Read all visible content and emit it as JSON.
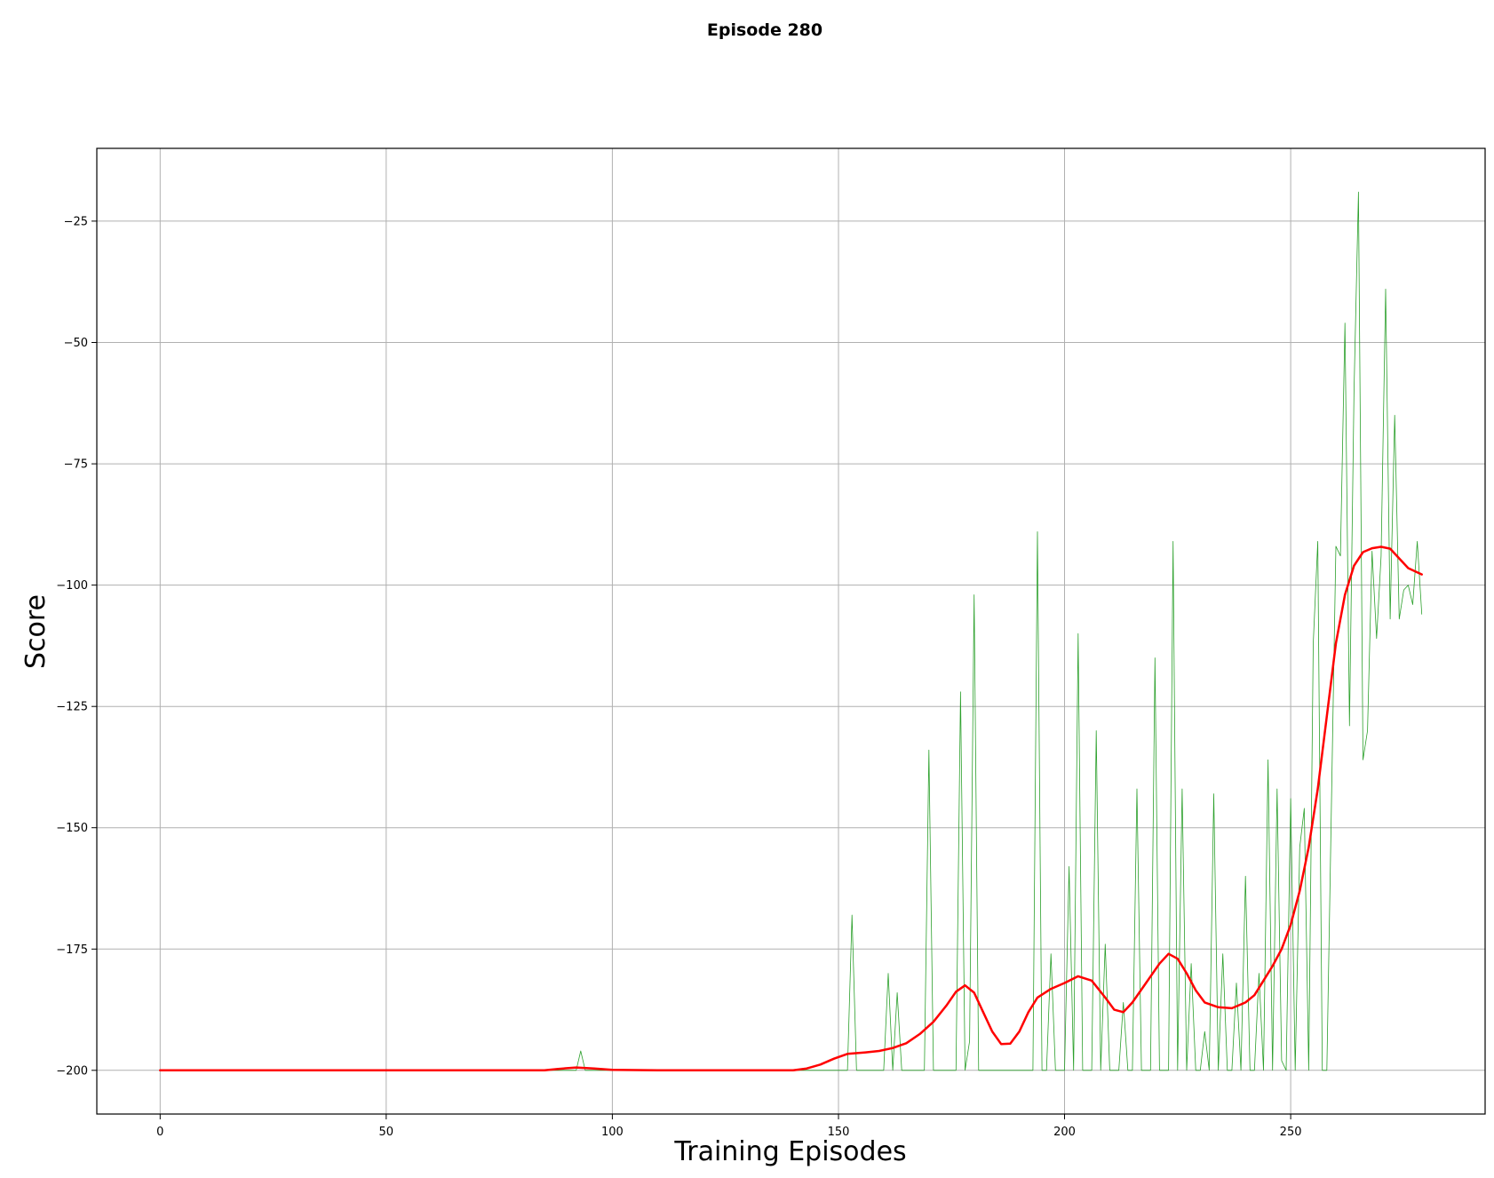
{
  "chart_data": {
    "type": "line",
    "title": "Episode 280",
    "xlabel": "Training Episodes",
    "ylabel": "Score",
    "xlim": [
      -14,
      293
    ],
    "ylim": [
      -209,
      -10
    ],
    "grid": true,
    "xticks": [
      0,
      50,
      100,
      150,
      200,
      250
    ],
    "yticks": [
      -200,
      -175,
      -150,
      -125,
      -100,
      -75,
      -50,
      -25
    ],
    "ytick_labels": [
      "−200",
      "−175",
      "−150",
      "−125",
      "−100",
      "−75",
      "−50",
      "−25"
    ],
    "series": [
      {
        "color": "#2ca02c",
        "linewidth": 0.8,
        "points": [
          [
            0,
            -200
          ],
          [
            90,
            -200
          ],
          [
            92,
            -200
          ],
          [
            93,
            -196
          ],
          [
            94,
            -200
          ],
          [
            152,
            -200
          ],
          [
            153,
            -168
          ],
          [
            154,
            -200
          ],
          [
            160,
            -200
          ],
          [
            161,
            -180
          ],
          [
            162,
            -200
          ],
          [
            163,
            -184
          ],
          [
            164,
            -200
          ],
          [
            169,
            -200
          ],
          [
            170,
            -134
          ],
          [
            171,
            -200
          ],
          [
            176,
            -200
          ],
          [
            177,
            -122
          ],
          [
            178,
            -200
          ],
          [
            179,
            -194
          ],
          [
            180,
            -102
          ],
          [
            181,
            -200
          ],
          [
            193,
            -200
          ],
          [
            194,
            -89
          ],
          [
            195,
            -200
          ],
          [
            196,
            -200
          ],
          [
            197,
            -176
          ],
          [
            198,
            -200
          ],
          [
            200,
            -200
          ],
          [
            201,
            -158
          ],
          [
            202,
            -200
          ],
          [
            203,
            -110
          ],
          [
            204,
            -200
          ],
          [
            206,
            -200
          ],
          [
            207,
            -130
          ],
          [
            208,
            -200
          ],
          [
            209,
            -174
          ],
          [
            210,
            -200
          ],
          [
            212,
            -200
          ],
          [
            213,
            -186
          ],
          [
            214,
            -200
          ],
          [
            215,
            -200
          ],
          [
            216,
            -142
          ],
          [
            217,
            -200
          ],
          [
            219,
            -200
          ],
          [
            220,
            -115
          ],
          [
            221,
            -200
          ],
          [
            223,
            -200
          ],
          [
            224,
            -91
          ],
          [
            225,
            -200
          ],
          [
            226,
            -142
          ],
          [
            227,
            -200
          ],
          [
            228,
            -178
          ],
          [
            229,
            -200
          ],
          [
            230,
            -200
          ],
          [
            231,
            -192
          ],
          [
            232,
            -200
          ],
          [
            233,
            -143
          ],
          [
            234,
            -200
          ],
          [
            235,
            -176
          ],
          [
            236,
            -200
          ],
          [
            237,
            -200
          ],
          [
            238,
            -182
          ],
          [
            239,
            -200
          ],
          [
            240,
            -160
          ],
          [
            241,
            -200
          ],
          [
            242,
            -200
          ],
          [
            243,
            -180
          ],
          [
            244,
            -200
          ],
          [
            245,
            -136
          ],
          [
            246,
            -200
          ],
          [
            247,
            -142
          ],
          [
            248,
            -198
          ],
          [
            249,
            -200
          ],
          [
            250,
            -144
          ],
          [
            251,
            -200
          ],
          [
            252,
            -154
          ],
          [
            253,
            -146
          ],
          [
            254,
            -200
          ],
          [
            255,
            -112
          ],
          [
            256,
            -91
          ],
          [
            257,
            -200
          ],
          [
            258,
            -200
          ],
          [
            260,
            -92
          ],
          [
            261,
            -94
          ],
          [
            262,
            -46
          ],
          [
            263,
            -129
          ],
          [
            264,
            -60
          ],
          [
            265,
            -19
          ],
          [
            266,
            -136
          ],
          [
            267,
            -130
          ],
          [
            268,
            -93
          ],
          [
            269,
            -111
          ],
          [
            270,
            -94
          ],
          [
            271,
            -39
          ],
          [
            272,
            -107
          ],
          [
            273,
            -65
          ],
          [
            274,
            -107
          ],
          [
            275,
            -101
          ],
          [
            276,
            -100
          ],
          [
            277,
            -104
          ],
          [
            278,
            -91
          ],
          [
            279,
            -106
          ]
        ]
      },
      {
        "color": "#ff0000",
        "linewidth": 2.5,
        "points": [
          [
            0,
            -200
          ],
          [
            80,
            -200
          ],
          [
            85,
            -200
          ],
          [
            88,
            -199.7
          ],
          [
            92,
            -199.4
          ],
          [
            96,
            -199.6
          ],
          [
            100,
            -199.9
          ],
          [
            110,
            -200
          ],
          [
            140,
            -200
          ],
          [
            143,
            -199.6
          ],
          [
            146,
            -198.8
          ],
          [
            149,
            -197.6
          ],
          [
            152,
            -196.6
          ],
          [
            156,
            -196.3
          ],
          [
            159,
            -196
          ],
          [
            162,
            -195.4
          ],
          [
            165,
            -194.4
          ],
          [
            168,
            -192.5
          ],
          [
            171,
            -190
          ],
          [
            174,
            -186.5
          ],
          [
            176,
            -183.8
          ],
          [
            178,
            -182.5
          ],
          [
            180,
            -184
          ],
          [
            182,
            -188
          ],
          [
            184,
            -192
          ],
          [
            186,
            -194.6
          ],
          [
            188,
            -194.5
          ],
          [
            190,
            -192
          ],
          [
            192,
            -188
          ],
          [
            194,
            -185
          ],
          [
            197,
            -183.2
          ],
          [
            200,
            -182
          ],
          [
            203,
            -180.6
          ],
          [
            206,
            -181.5
          ],
          [
            209,
            -185
          ],
          [
            211,
            -187.5
          ],
          [
            213,
            -188
          ],
          [
            215,
            -186
          ],
          [
            218,
            -182
          ],
          [
            221,
            -178
          ],
          [
            223,
            -176
          ],
          [
            225,
            -177
          ],
          [
            227,
            -180
          ],
          [
            229,
            -183.5
          ],
          [
            231,
            -186
          ],
          [
            234,
            -187
          ],
          [
            237,
            -187.2
          ],
          [
            240,
            -186
          ],
          [
            242,
            -184.5
          ],
          [
            244,
            -181.5
          ],
          [
            246,
            -178.5
          ],
          [
            248,
            -175
          ],
          [
            250,
            -170
          ],
          [
            252,
            -163
          ],
          [
            254,
            -154
          ],
          [
            256,
            -142
          ],
          [
            258,
            -127
          ],
          [
            260,
            -112
          ],
          [
            262,
            -102
          ],
          [
            264,
            -96
          ],
          [
            266,
            -93.2
          ],
          [
            268,
            -92.4
          ],
          [
            270,
            -92.1
          ],
          [
            272,
            -92.5
          ],
          [
            274,
            -94.5
          ],
          [
            276,
            -96.5
          ],
          [
            279,
            -97.8
          ]
        ]
      }
    ]
  }
}
